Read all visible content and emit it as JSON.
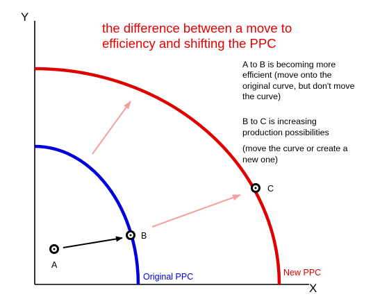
{
  "title": {
    "line1": "the difference between a move to",
    "line2": "efficiency and shifting the PPC",
    "color": "#e60000"
  },
  "axes": {
    "y_label": "Y",
    "x_label": "X"
  },
  "notes": {
    "a_to_b": [
      "A to B is becoming more",
      "efficient (move onto the",
      "original curve, but don't move",
      "the curve)"
    ],
    "b_to_c": [
      "B to C is increasing",
      "production possibilities",
      "(move the curve or create a",
      "new one)"
    ]
  },
  "points": {
    "a": "A",
    "b": "B",
    "c": "C"
  },
  "curves": {
    "original": {
      "label": "Original PPC",
      "color": "#0000dd"
    },
    "new": {
      "label": "New PPC",
      "color": "#e00000"
    }
  },
  "colors": {
    "axis": "#000000",
    "shift_arrow": "#f4a0a0",
    "efficiency_arrow": "#000000"
  }
}
